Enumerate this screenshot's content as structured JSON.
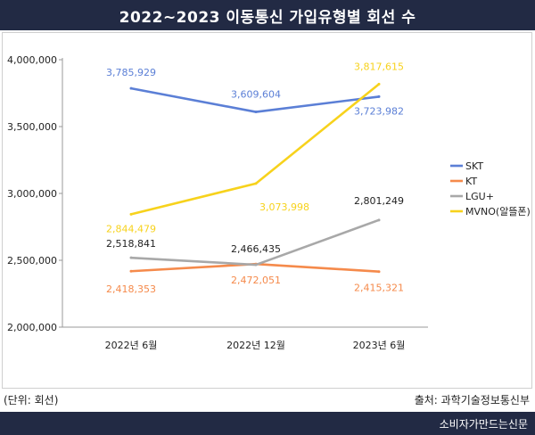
{
  "chart_data": {
    "type": "line",
    "title": "2022~2023 이동통신 가입유형별 회선 수",
    "categories": [
      "2022년 6월",
      "2022년 12월",
      "2023년 6월"
    ],
    "ylim": [
      2000000,
      4000000
    ],
    "yticks": [
      "2,000,000",
      "2,500,000",
      "3,000,000",
      "3,500,000",
      "4,000,000"
    ],
    "ytick_values": [
      2000000,
      2500000,
      3000000,
      3500000,
      4000000
    ],
    "grid": false,
    "legend": "right",
    "series": [
      {
        "name": "SKT",
        "color": "#5b7fd6",
        "values": [
          3785929,
          3609604,
          3723982
        ],
        "labels": [
          "3,785,929",
          "3,609,604",
          "3,723,982"
        ]
      },
      {
        "name": "KT",
        "color": "#f58a4b",
        "values": [
          2418353,
          2472051,
          2415321
        ],
        "labels": [
          "2,418,353",
          "2,472,051",
          "2,415,321"
        ]
      },
      {
        "name": "LGU+",
        "color": "#a8a8a8",
        "values": [
          2518841,
          2466435,
          2801249
        ],
        "labels": [
          "2,518,841",
          "2,466,435",
          "2,801,249"
        ]
      },
      {
        "name": "MVNO(알뜰폰)",
        "color": "#f7d21c",
        "values": [
          2844479,
          3073998,
          3817615
        ],
        "labels": [
          "2,844,479",
          "3,073,998",
          "3,817,615"
        ]
      }
    ]
  },
  "notes": {
    "unit": "(단위: 회선)",
    "source": "출처: 과학기술정보통신부"
  },
  "footer": {
    "brand": "소비자가만드는신문"
  }
}
